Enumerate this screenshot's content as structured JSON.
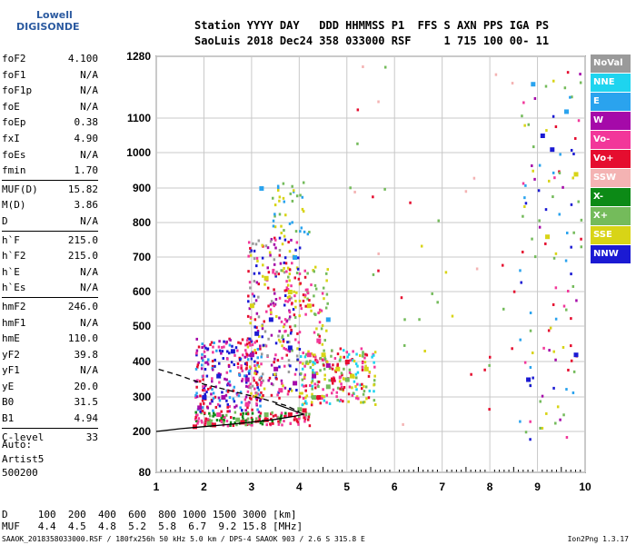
{
  "logo": {
    "line1": "Lowell",
    "line2": "DIGISONDE"
  },
  "header": {
    "line1": "Station YYYY DAY   DDD HHMMSS P1  FFS S AXN PPS IGA PS",
    "line2": "SaoLuis 2018 Dec24 358 033000 RSF     1 715 100 00- 11"
  },
  "params": [
    {
      "k": "foF2",
      "v": "4.100"
    },
    {
      "k": "foF1",
      "v": "N/A"
    },
    {
      "k": "foF1p",
      "v": "N/A"
    },
    {
      "k": "foE",
      "v": "N/A"
    },
    {
      "k": "foEp",
      "v": "0.38"
    },
    {
      "k": "fxI",
      "v": "4.90"
    },
    {
      "k": "foEs",
      "v": "N/A"
    },
    {
      "k": "fmin",
      "v": "1.70"
    },
    {
      "k": "MUF(D)",
      "v": "15.82"
    },
    {
      "k": "M(D)",
      "v": "3.86"
    },
    {
      "k": "D",
      "v": "N/A"
    },
    {
      "k": "h`F",
      "v": "215.0"
    },
    {
      "k": "h`F2",
      "v": "215.0"
    },
    {
      "k": "h`E",
      "v": "N/A"
    },
    {
      "k": "h`Es",
      "v": "N/A"
    },
    {
      "k": "hmF2",
      "v": "246.0"
    },
    {
      "k": "hmF1",
      "v": "N/A"
    },
    {
      "k": "hmE",
      "v": "110.0"
    },
    {
      "k": "yF2",
      "v": "39.8"
    },
    {
      "k": "yF1",
      "v": "N/A"
    },
    {
      "k": "yE",
      "v": "20.0"
    },
    {
      "k": "B0",
      "v": "31.5"
    },
    {
      "k": "B1",
      "v": "4.94"
    },
    {
      "k": "C-level",
      "v": "33"
    }
  ],
  "auto": {
    "l1": "Auto:",
    "l2": "Artist5",
    "l3": "500200"
  },
  "footer": {
    "line1": "D     100  200  400  600  800 1000 1500 3000 [km]",
    "line2": "MUF   4.4  4.5  4.8  5.2  5.8  6.7  9.2 15.8 [MHz]"
  },
  "caption": "SAAOK_2018358033000.RSF / 180fx256h 50 kHz 5.0 km / DPS-4 SAAOK 903 / 2.6 S 315.8 E",
  "version": "Ion2Png 1.3.17",
  "legend": [
    {
      "label": "NoVal",
      "color": "#9a9a9a"
    },
    {
      "label": "NNE",
      "color": "#1ed4ef"
    },
    {
      "label": "E",
      "color": "#2aa3ee"
    },
    {
      "label": "W",
      "color": "#a50aa9"
    },
    {
      "label": "Vo-",
      "color": "#f2379a"
    },
    {
      "label": "Vo+",
      "color": "#e50d2f"
    },
    {
      "label": "SSW",
      "color": "#f4b3b3"
    },
    {
      "label": "X-",
      "color": "#0c8a16"
    },
    {
      "label": "X+",
      "color": "#74bb5b"
    },
    {
      "label": "SSE",
      "color": "#d8d416"
    },
    {
      "label": "NNW",
      "color": "#1b1ad3"
    }
  ],
  "chart_data": {
    "type": "scatter",
    "xlim": [
      1,
      10
    ],
    "ylim": [
      80,
      1280
    ],
    "x_ticks": [
      "1",
      "2",
      "3",
      "4",
      "5",
      "6",
      "7",
      "8",
      "9",
      "10"
    ],
    "y_ticks": [
      "80",
      "200",
      "300",
      "400",
      "500",
      "600",
      "700",
      "800",
      "900",
      "1000",
      "1100",
      "1280"
    ],
    "grid": true,
    "series": [
      {
        "name": "Vo+",
        "color": "#e50d2f",
        "x": [
          1.8,
          2.2,
          2.8,
          3.3,
          3.8,
          4.1,
          4.4,
          4.7,
          5.0
        ],
        "y": [
          215,
          220,
          228,
          235,
          250,
          262,
          300,
          350,
          400
        ]
      },
      {
        "name": "W",
        "color": "#a50aa9",
        "x": [
          1.9,
          2.4,
          2.9,
          3.0,
          3.5,
          3.9,
          4.3,
          4.6
        ],
        "y": [
          270,
          300,
          350,
          420,
          380,
          340,
          360,
          390
        ]
      },
      {
        "name": "NNW",
        "color": "#1b1ad3",
        "x": [
          2.0,
          2.3,
          2.6,
          3.1,
          3.4,
          3.8,
          8.8,
          9.1,
          9.3,
          9.8
        ],
        "y": [
          300,
          360,
          430,
          480,
          520,
          440,
          350,
          1050,
          1010,
          420
        ]
      },
      {
        "name": "SSE",
        "color": "#d8d416",
        "x": [
          3.0,
          3.3,
          3.8,
          4.2,
          4.5,
          4.8,
          5.1,
          5.4,
          9.2,
          9.8
        ],
        "y": [
          560,
          640,
          600,
          560,
          420,
          380,
          360,
          380,
          760,
          940
        ]
      },
      {
        "name": "X+",
        "color": "#74bb5b",
        "x": [
          2.1,
          2.7,
          3.3,
          4.0,
          4.3,
          4.6,
          5.0
        ],
        "y": [
          225,
          235,
          250,
          265,
          300,
          330,
          350
        ]
      },
      {
        "name": "Vo-",
        "color": "#f2379a",
        "x": [
          2.3,
          2.9,
          3.6,
          4.2,
          4.4
        ],
        "y": [
          250,
          280,
          320,
          420,
          460
        ]
      },
      {
        "name": "E",
        "color": "#2aa3ee",
        "x": [
          3.2,
          3.9,
          4.6,
          8.9,
          9.6
        ],
        "y": [
          900,
          700,
          520,
          1200,
          1120
        ]
      }
    ],
    "curves": {
      "solid_trace": "h`F virtual height trace",
      "dashed_trace": "profile"
    }
  }
}
